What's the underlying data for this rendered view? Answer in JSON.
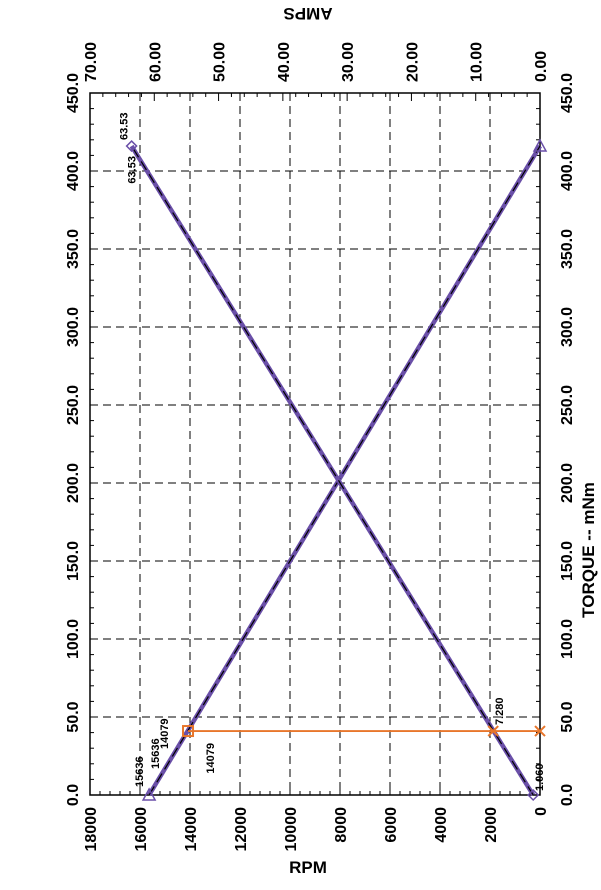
{
  "chart_data": {
    "type": "line",
    "orientation": "rotated-90",
    "torque_axis": {
      "label": "TORQUE  --  mNm",
      "range": [
        0,
        450
      ],
      "ticks": [
        "0.0",
        "50.0",
        "100.0",
        "150.0",
        "200.0",
        "250.0",
        "300.0",
        "350.0",
        "400.0",
        "450.0"
      ]
    },
    "rpm_axis": {
      "label": "RPM",
      "range": [
        0,
        18000
      ],
      "ticks": [
        "0",
        "2000",
        "4000",
        "6000",
        "8000",
        "10000",
        "12000",
        "14000",
        "16000",
        "18000"
      ]
    },
    "amps_axis": {
      "label": "AMPS",
      "range": [
        0,
        70
      ],
      "ticks": [
        "0.00",
        "10.00",
        "20.00",
        "30.00",
        "40.00",
        "50.00",
        "60.00",
        "70.00"
      ]
    },
    "grid": true,
    "series": [
      {
        "axis": "rpm",
        "x": [
          0,
          416
        ],
        "y": [
          15636,
          0
        ]
      },
      {
        "axis": "amps",
        "x": [
          0,
          416
        ],
        "y": [
          1.06,
          63.53
        ]
      }
    ],
    "operating_point": {
      "torque": 41,
      "rpm": 14079,
      "amps": 7.28,
      "color": "#e8762b"
    },
    "annotations": {
      "amps_max_top": "63.53",
      "amps_max_bottom": "63.53",
      "amps_min": "1.060",
      "rpm_noload_1": "15636",
      "rpm_noload_2": "15636",
      "rpm_op_1": "14079",
      "rpm_op_2": "14079",
      "amps_op": "7.280"
    },
    "colors": {
      "series": "#6a4fa8",
      "fit_line": "#000000",
      "operating_point": "#e8762b"
    }
  }
}
